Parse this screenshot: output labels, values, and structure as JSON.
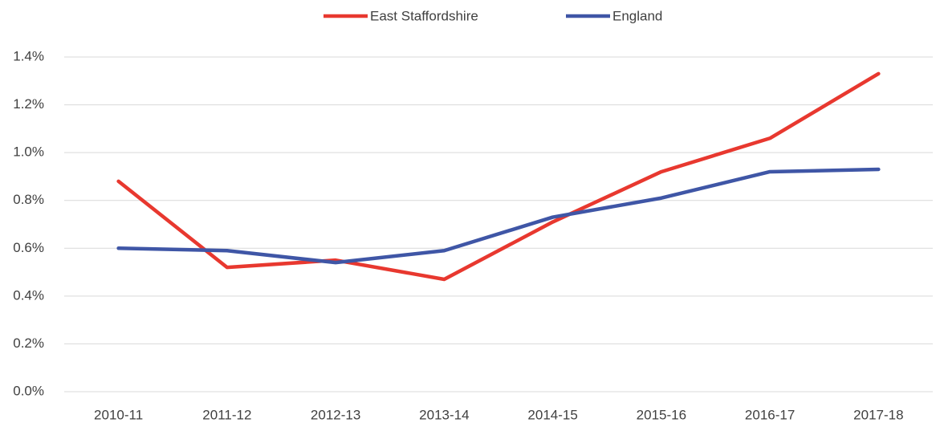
{
  "chart_data": {
    "type": "line",
    "categories": [
      "2010-11",
      "2011-12",
      "2012-13",
      "2013-14",
      "2014-15",
      "2015-16",
      "2016-17",
      "2017-18"
    ],
    "series": [
      {
        "name": "East Staffordshire",
        "color": "#e8382f",
        "values": [
          0.88,
          0.52,
          0.55,
          0.47,
          0.71,
          0.92,
          1.06,
          1.33
        ]
      },
      {
        "name": "England",
        "color": "#3f56a6",
        "values": [
          0.6,
          0.59,
          0.54,
          0.59,
          0.73,
          0.81,
          0.92,
          0.93
        ]
      }
    ],
    "ylim": [
      0,
      1.4
    ],
    "yticks": [
      {
        "value": 0,
        "label": "0.0%"
      },
      {
        "value": 0.2,
        "label": "0.2%"
      },
      {
        "value": 0.4,
        "label": "0.4%"
      },
      {
        "value": 0.6,
        "label": "0.6%"
      },
      {
        "value": 0.8,
        "label": "0.8%"
      },
      {
        "value": 1.0,
        "label": "1.0%"
      },
      {
        "value": 1.2,
        "label": "1.2%"
      },
      {
        "value": 1.4,
        "label": "1.4%"
      }
    ],
    "grid": true,
    "legend": "top"
  }
}
